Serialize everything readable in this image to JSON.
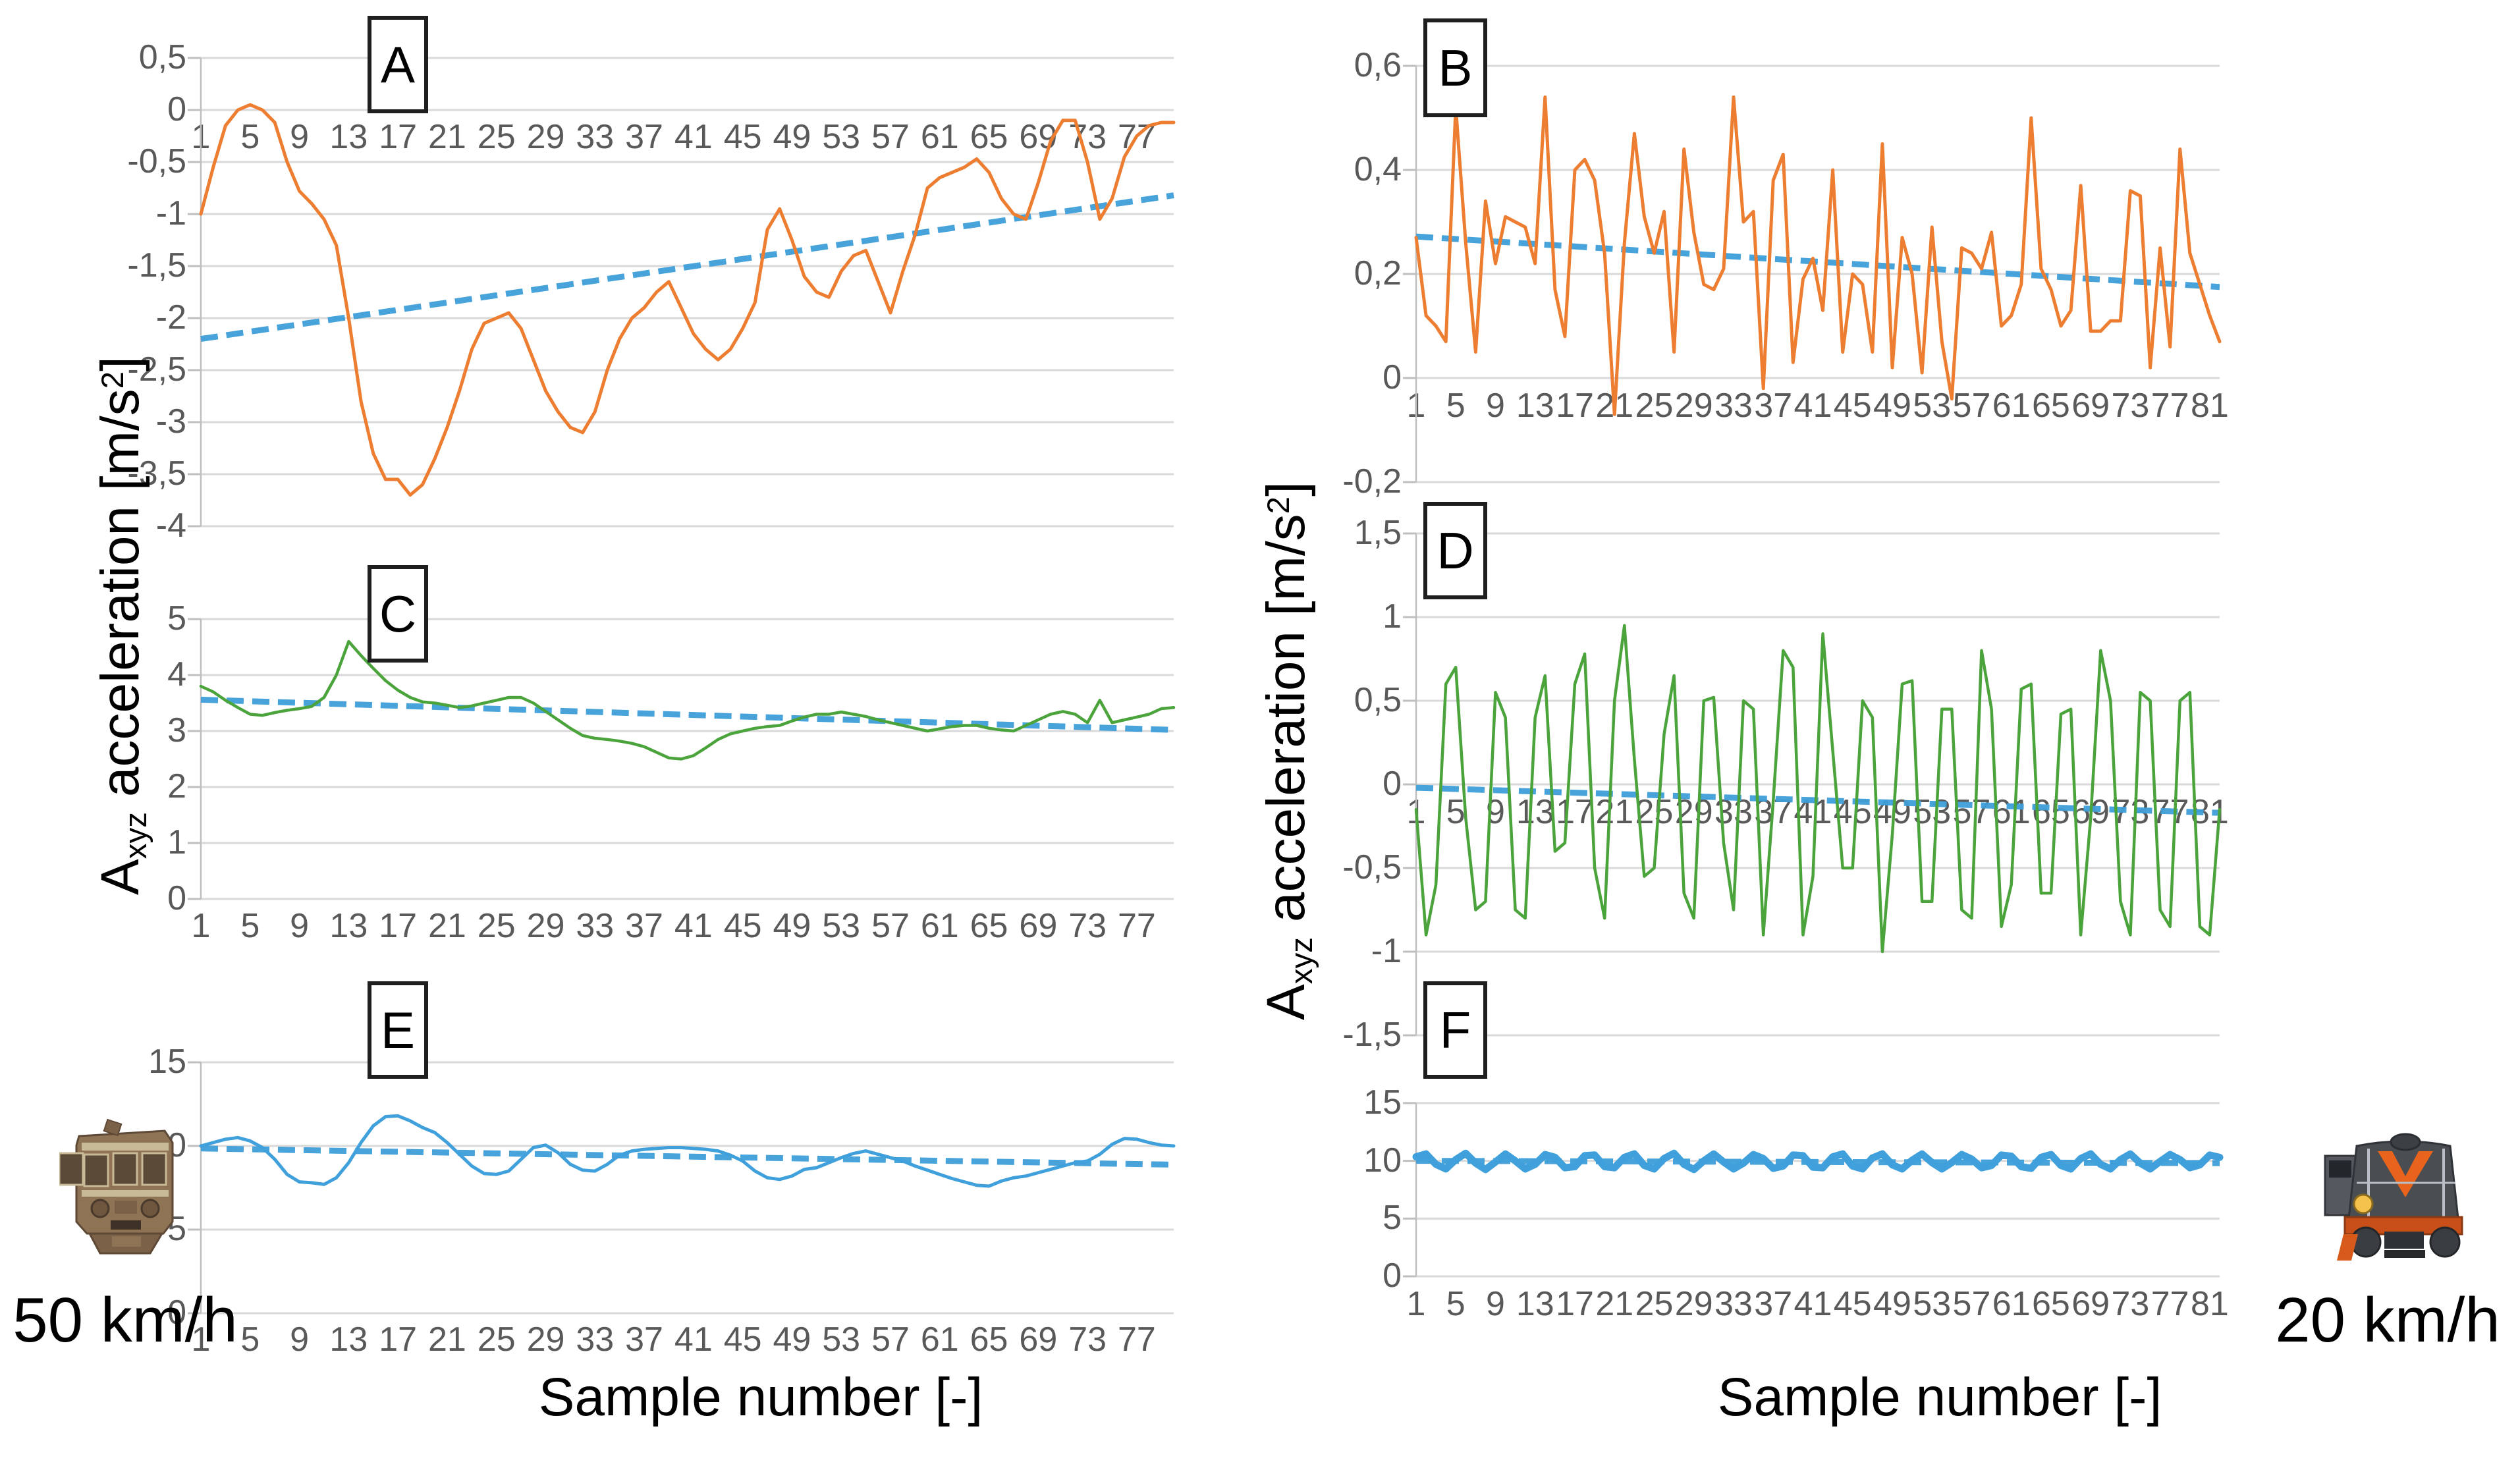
{
  "figure": {
    "y_axis_title": {
      "prefix": "A",
      "sub": "xyz",
      "mid": " acceleration [m/s",
      "sup": "2",
      "end": "]"
    },
    "x_axis_title_left": "Sample number [-]",
    "x_axis_title_right": "Sample number [-]",
    "left_speed_label": "50 km/h",
    "right_speed_label": "20 km/h",
    "train_left_name": "emu-train-front",
    "train_right_name": "diesel-locomotive-front",
    "colors": {
      "orange_series": "#ED7D31",
      "green_series": "#4BA33C",
      "blue_series": "#3FA0DC",
      "trend_blue": "#3E9FD9",
      "gridline": "#D9D9D9",
      "axis_line": "#BFBFBF",
      "tick_text": "#595959"
    }
  },
  "chart_data": [
    {
      "id": "A",
      "label": "A",
      "type": "line",
      "panel": "left",
      "series_color": "#ED7D31",
      "trend_color": "#3E9FD9",
      "ylim": [
        -4,
        0.5
      ],
      "grid": true,
      "y_ticks": [
        {
          "v": 0.5,
          "label": "0,5"
        },
        {
          "v": 0,
          "label": "0"
        },
        {
          "v": -0.5,
          "label": "-0,5"
        },
        {
          "v": -1,
          "label": "-1"
        },
        {
          "v": -1.5,
          "label": "-1,5"
        },
        {
          "v": -2,
          "label": "-2"
        },
        {
          "v": -2.5,
          "label": "-2,5"
        },
        {
          "v": -3,
          "label": "-3"
        },
        {
          "v": -3.5,
          "label": "-3,5"
        },
        {
          "v": -4,
          "label": "-4"
        }
      ],
      "x_tick_labels": [
        "1",
        "5",
        "9",
        "13",
        "17",
        "21",
        "25",
        "29",
        "33",
        "37",
        "41",
        "45",
        "49",
        "53",
        "57",
        "61",
        "65",
        "69",
        "73",
        "77"
      ],
      "values": [
        -1.0,
        -0.55,
        -0.15,
        0.0,
        0.05,
        0.0,
        -0.12,
        -0.5,
        -0.78,
        -0.9,
        -1.05,
        -1.3,
        -2.0,
        -2.8,
        -3.3,
        -3.55,
        -3.55,
        -3.7,
        -3.6,
        -3.35,
        -3.05,
        -2.7,
        -2.3,
        -2.05,
        -2.0,
        -1.95,
        -2.1,
        -2.4,
        -2.7,
        -2.9,
        -3.05,
        -3.1,
        -2.9,
        -2.5,
        -2.2,
        -2.0,
        -1.9,
        -1.75,
        -1.65,
        -1.9,
        -2.15,
        -2.3,
        -2.4,
        -2.3,
        -2.1,
        -1.85,
        -1.15,
        -0.95,
        -1.25,
        -1.6,
        -1.75,
        -1.8,
        -1.55,
        -1.4,
        -1.35,
        -1.65,
        -1.95,
        -1.55,
        -1.2,
        -0.75,
        -0.65,
        -0.6,
        -0.55,
        -0.47,
        -0.6,
        -0.85,
        -1.0,
        -1.05,
        -0.7,
        -0.3,
        -0.1,
        -0.1,
        -0.5,
        -1.05,
        -0.85,
        -0.45,
        -0.25,
        -0.15,
        -0.12,
        -0.12
      ],
      "trend": [
        -2.2,
        -0.82
      ]
    },
    {
      "id": "B",
      "label": "B",
      "type": "line",
      "panel": "right",
      "series_color": "#ED7D31",
      "trend_color": "#3E9FD9",
      "ylim": [
        -0.2,
        0.6
      ],
      "grid": true,
      "y_ticks": [
        {
          "v": 0.6,
          "label": "0,6"
        },
        {
          "v": 0.4,
          "label": "0,4"
        },
        {
          "v": 0.2,
          "label": "0,2"
        },
        {
          "v": 0,
          "label": "0"
        },
        {
          "v": -0.2,
          "label": "-0,2"
        }
      ],
      "x_tick_labels": [
        "1",
        "5",
        "9",
        "13",
        "17",
        "21",
        "25",
        "29",
        "33",
        "37",
        "41",
        "45",
        "49",
        "53",
        "57",
        "61",
        "65",
        "69",
        "73",
        "77",
        "81"
      ],
      "values": [
        0.27,
        0.12,
        0.1,
        0.07,
        0.52,
        0.26,
        0.05,
        0.34,
        0.22,
        0.31,
        0.3,
        0.29,
        0.22,
        0.54,
        0.17,
        0.08,
        0.4,
        0.42,
        0.38,
        0.24,
        -0.07,
        0.26,
        0.47,
        0.31,
        0.24,
        0.32,
        0.05,
        0.44,
        0.28,
        0.18,
        0.17,
        0.21,
        0.54,
        0.3,
        0.32,
        -0.02,
        0.38,
        0.43,
        0.03,
        0.19,
        0.23,
        0.13,
        0.4,
        0.05,
        0.2,
        0.18,
        0.05,
        0.45,
        0.02,
        0.27,
        0.2,
        0.01,
        0.29,
        0.07,
        -0.04,
        0.25,
        0.24,
        0.21,
        0.28,
        0.1,
        0.12,
        0.18,
        0.5,
        0.21,
        0.17,
        0.1,
        0.13,
        0.37,
        0.09,
        0.09,
        0.11,
        0.11,
        0.36,
        0.35,
        0.02,
        0.25,
        0.06,
        0.44,
        0.24,
        0.18,
        0.12,
        0.07
      ],
      "trend": [
        0.272,
        0.175
      ]
    },
    {
      "id": "C",
      "label": "C",
      "type": "line",
      "panel": "left",
      "series_color": "#4BA33C",
      "trend_color": "#3E9FD9",
      "ylim": [
        0,
        5
      ],
      "grid": true,
      "y_ticks": [
        {
          "v": 5,
          "label": "5"
        },
        {
          "v": 4,
          "label": "4"
        },
        {
          "v": 3,
          "label": "3"
        },
        {
          "v": 2,
          "label": "2"
        },
        {
          "v": 1,
          "label": "1"
        },
        {
          "v": 0,
          "label": "0"
        }
      ],
      "x_tick_labels": [
        "1",
        "5",
        "9",
        "13",
        "17",
        "21",
        "25",
        "29",
        "33",
        "37",
        "41",
        "45",
        "49",
        "53",
        "57",
        "61",
        "65",
        "69",
        "73",
        "77"
      ],
      "values": [
        3.8,
        3.7,
        3.55,
        3.42,
        3.3,
        3.28,
        3.33,
        3.37,
        3.4,
        3.44,
        3.6,
        4.0,
        4.6,
        4.35,
        4.12,
        3.9,
        3.73,
        3.6,
        3.52,
        3.5,
        3.46,
        3.42,
        3.45,
        3.5,
        3.55,
        3.6,
        3.6,
        3.5,
        3.35,
        3.2,
        3.05,
        2.92,
        2.87,
        2.85,
        2.82,
        2.78,
        2.72,
        2.62,
        2.52,
        2.5,
        2.56,
        2.7,
        2.85,
        2.95,
        3.0,
        3.05,
        3.08,
        3.1,
        3.18,
        3.25,
        3.3,
        3.3,
        3.34,
        3.3,
        3.26,
        3.2,
        3.15,
        3.1,
        3.05,
        3.0,
        3.04,
        3.08,
        3.1,
        3.1,
        3.05,
        3.02,
        3.0,
        3.1,
        3.2,
        3.3,
        3.35,
        3.3,
        3.15,
        3.55,
        3.15,
        3.2,
        3.25,
        3.3,
        3.4,
        3.42
      ],
      "trend": [
        3.56,
        3.02
      ]
    },
    {
      "id": "D",
      "label": "D",
      "type": "line",
      "panel": "right",
      "series_color": "#4BA33C",
      "trend_color": "#3E9FD9",
      "ylim": [
        -1.5,
        1.5
      ],
      "grid": true,
      "y_ticks": [
        {
          "v": 1.5,
          "label": "1,5"
        },
        {
          "v": 1,
          "label": "1"
        },
        {
          "v": 0.5,
          "label": "0,5"
        },
        {
          "v": 0,
          "label": "0"
        },
        {
          "v": -0.5,
          "label": "-0,5"
        },
        {
          "v": -1,
          "label": "-1"
        },
        {
          "v": -1.5,
          "label": "-1,5"
        }
      ],
      "x_tick_labels": [
        "1",
        "5",
        "9",
        "13",
        "17",
        "21",
        "25",
        "29",
        "33",
        "37",
        "41",
        "45",
        "49",
        "53",
        "57",
        "61",
        "65",
        "69",
        "73",
        "77",
        "81"
      ],
      "values": [
        -0.15,
        -0.9,
        -0.6,
        0.6,
        0.7,
        -0.2,
        -0.75,
        -0.7,
        0.55,
        0.4,
        -0.75,
        -0.8,
        0.4,
        0.65,
        -0.4,
        -0.35,
        0.6,
        0.78,
        -0.5,
        -0.8,
        0.5,
        0.95,
        0.15,
        -0.55,
        -0.5,
        0.3,
        0.65,
        -0.65,
        -0.8,
        0.5,
        0.52,
        -0.35,
        -0.75,
        0.5,
        0.45,
        -0.9,
        -0.1,
        0.8,
        0.7,
        -0.9,
        -0.55,
        0.9,
        0.2,
        -0.5,
        -0.5,
        0.5,
        0.4,
        -1.0,
        -0.3,
        0.6,
        0.62,
        -0.7,
        -0.7,
        0.45,
        0.45,
        -0.75,
        -0.8,
        0.8,
        0.45,
        -0.85,
        -0.6,
        0.57,
        0.6,
        -0.65,
        -0.65,
        0.42,
        0.45,
        -0.9,
        -0.2,
        0.8,
        0.5,
        -0.7,
        -0.9,
        0.55,
        0.5,
        -0.75,
        -0.85,
        0.5,
        0.55,
        -0.85,
        -0.9,
        -0.15
      ],
      "trend": [
        -0.02,
        -0.17
      ]
    },
    {
      "id": "E",
      "label": "E",
      "type": "line",
      "panel": "left",
      "series_color": "#3FA0DC",
      "trend_color": "#3E9FD9",
      "ylim": [
        0,
        15
      ],
      "grid": true,
      "y_ticks": [
        {
          "v": 15,
          "label": "15"
        },
        {
          "v": 10,
          "label": "10"
        },
        {
          "v": 5,
          "label": "5"
        },
        {
          "v": 0,
          "label": "0"
        }
      ],
      "x_tick_labels": [
        "1",
        "5",
        "9",
        "13",
        "17",
        "21",
        "25",
        "29",
        "33",
        "37",
        "41",
        "45",
        "49",
        "53",
        "57",
        "61",
        "65",
        "69",
        "73",
        "77"
      ],
      "values": [
        10.0,
        10.2,
        10.4,
        10.5,
        10.3,
        9.9,
        9.2,
        8.3,
        7.85,
        7.8,
        7.7,
        8.1,
        9.0,
        10.2,
        11.2,
        11.75,
        11.8,
        11.5,
        11.1,
        10.8,
        10.2,
        9.5,
        8.8,
        8.35,
        8.3,
        8.5,
        9.2,
        9.9,
        10.05,
        9.6,
        8.9,
        8.55,
        8.5,
        8.9,
        9.45,
        9.7,
        9.8,
        9.85,
        9.9,
        9.9,
        9.85,
        9.8,
        9.7,
        9.45,
        9.1,
        8.5,
        8.1,
        8.0,
        8.2,
        8.6,
        8.7,
        9.0,
        9.3,
        9.55,
        9.7,
        9.5,
        9.3,
        9.1,
        8.8,
        8.55,
        8.3,
        8.05,
        7.85,
        7.65,
        7.6,
        7.9,
        8.1,
        8.2,
        8.4,
        8.6,
        8.8,
        9.0,
        9.1,
        9.5,
        10.1,
        10.45,
        10.4,
        10.2,
        10.05,
        10.0
      ],
      "trend": [
        9.85,
        8.88
      ]
    },
    {
      "id": "F",
      "label": "F",
      "type": "line",
      "panel": "right",
      "series_color": "#3FA0DC",
      "trend_color": "#3E9FD9",
      "ylim": [
        0,
        15
      ],
      "grid": true,
      "y_ticks": [
        {
          "v": 15,
          "label": "15"
        },
        {
          "v": 10,
          "label": "10"
        },
        {
          "v": 5,
          "label": "5"
        },
        {
          "v": 0,
          "label": "0"
        }
      ],
      "x_tick_labels": [
        "1",
        "5",
        "9",
        "13",
        "17",
        "21",
        "25",
        "29",
        "33",
        "37",
        "41",
        "45",
        "49",
        "53",
        "57",
        "61",
        "65",
        "69",
        "73",
        "77",
        "81"
      ],
      "values": [
        10.35,
        10.6,
        9.7,
        9.3,
        10.1,
        10.65,
        9.8,
        9.25,
        9.9,
        10.6,
        10.0,
        9.3,
        9.7,
        10.55,
        10.3,
        9.4,
        9.5,
        10.45,
        10.5,
        9.5,
        9.4,
        10.3,
        10.6,
        9.6,
        9.3,
        10.2,
        10.65,
        9.7,
        9.25,
        10.0,
        10.6,
        9.9,
        9.3,
        9.8,
        10.55,
        10.2,
        9.35,
        9.55,
        10.5,
        10.45,
        9.45,
        9.4,
        10.35,
        10.6,
        9.55,
        9.3,
        10.25,
        10.6,
        9.65,
        9.3,
        10.05,
        10.6,
        9.85,
        9.3,
        9.85,
        10.55,
        10.15,
        9.4,
        9.6,
        10.5,
        10.4,
        9.5,
        9.35,
        10.3,
        10.55,
        9.6,
        9.3,
        10.2,
        10.6,
        9.7,
        9.3,
        10.1,
        10.6,
        9.8,
        9.3,
        9.95,
        10.55,
        10.1,
        9.4,
        9.65,
        10.5,
        10.3
      ],
      "trend": [
        10.0,
        9.8
      ]
    }
  ]
}
